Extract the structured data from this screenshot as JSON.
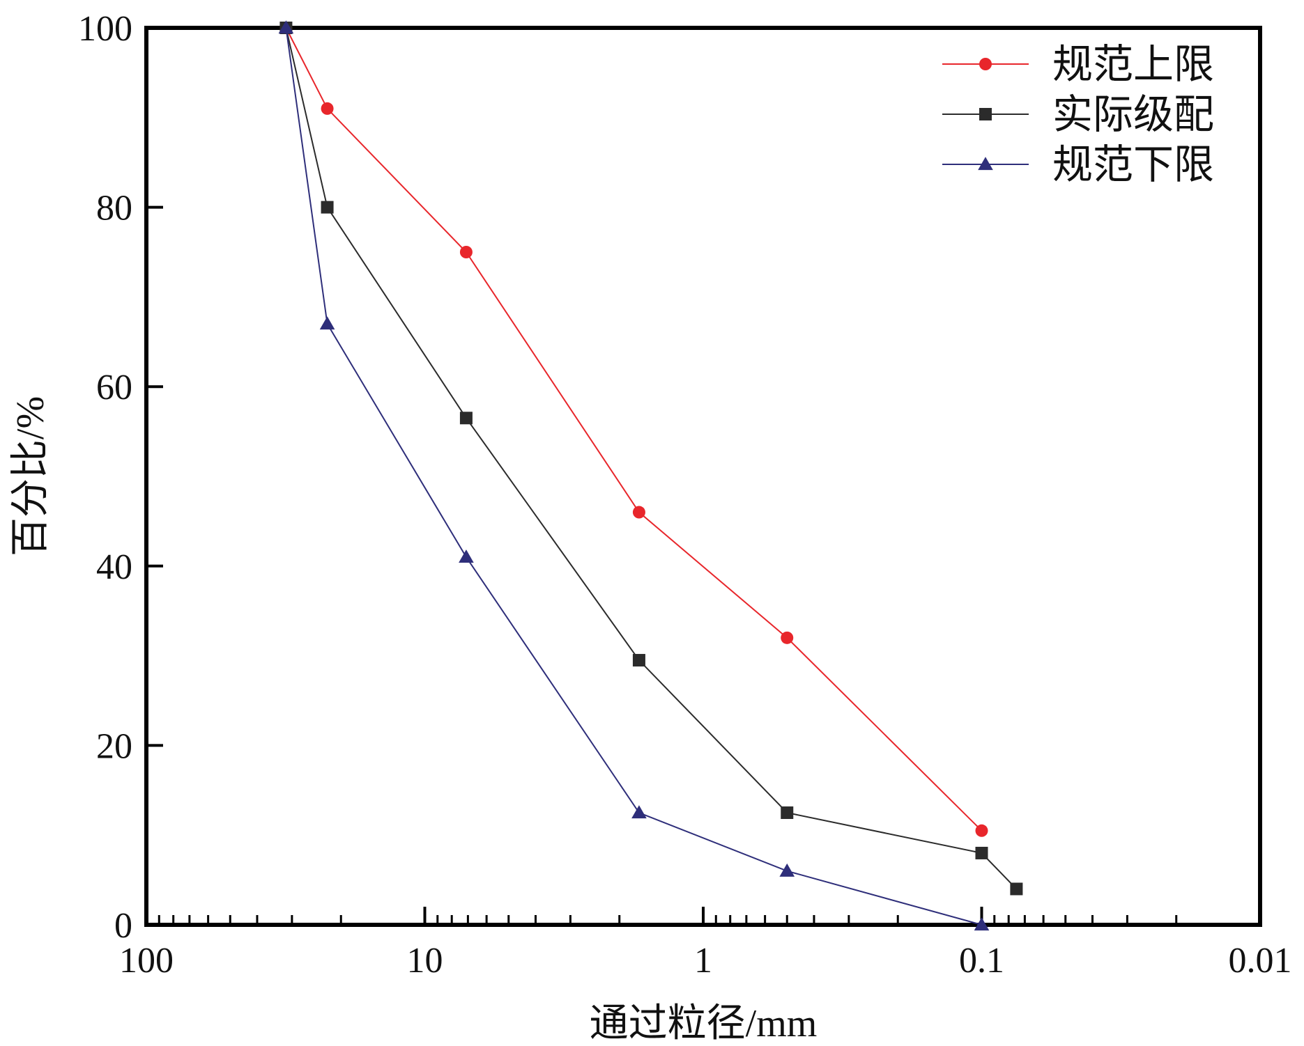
{
  "chart_data": {
    "type": "line",
    "xlabel": "通过粒径/mm",
    "ylabel": "百分比/%",
    "x_scale": "log",
    "x_reversed": true,
    "xlim": [
      100,
      0.01
    ],
    "ylim": [
      0,
      100
    ],
    "x_ticks": [
      100,
      10,
      1,
      0.1,
      0.01
    ],
    "x_tick_labels": [
      "100",
      "10",
      "1",
      "0.1",
      "0.01"
    ],
    "y_ticks": [
      0,
      20,
      40,
      60,
      80,
      100
    ],
    "y_tick_labels": [
      "0",
      "20",
      "40",
      "60",
      "80",
      "100"
    ],
    "grid": false,
    "legend_position": "top-right",
    "series": [
      {
        "name": "规范上限",
        "color": "#e8262b",
        "marker": "circle",
        "x": [
          31.5,
          22.4,
          7.1,
          1.7,
          0.5,
          0.1
        ],
        "y": [
          100,
          91,
          75,
          46,
          32,
          10.5
        ]
      },
      {
        "name": "实际级配",
        "color": "#2b2b2b",
        "marker": "square",
        "x": [
          31.5,
          22.4,
          7.1,
          1.7,
          0.5,
          0.1,
          0.075
        ],
        "y": [
          100,
          80,
          56.5,
          29.5,
          12.5,
          8,
          4
        ]
      },
      {
        "name": "规范下限",
        "color": "#2e2e7a",
        "marker": "triangle",
        "x": [
          31.5,
          22.4,
          7.1,
          1.7,
          0.5,
          0.1
        ],
        "y": [
          100,
          67,
          41,
          12.5,
          6,
          0
        ]
      }
    ]
  }
}
